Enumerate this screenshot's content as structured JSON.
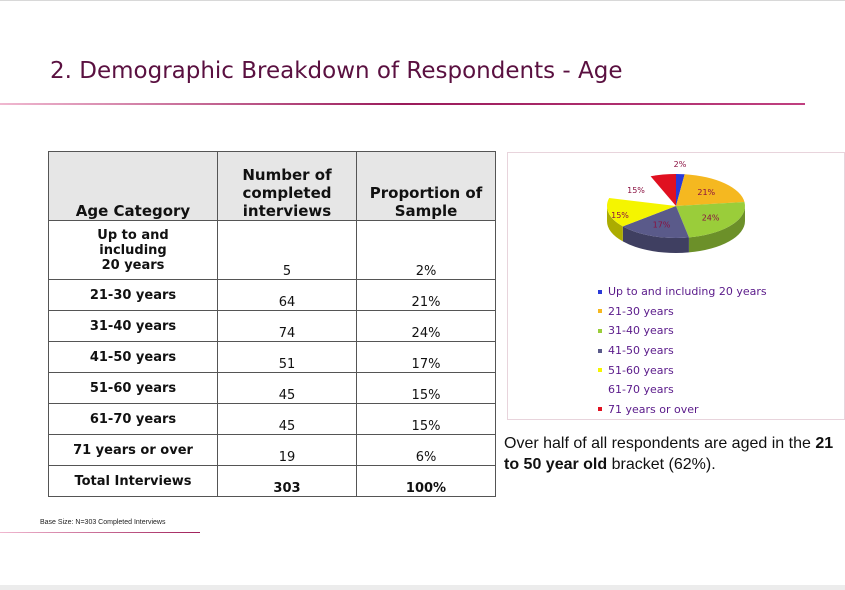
{
  "slide": {
    "title": "2. Demographic Breakdown of Respondents - Age",
    "footnote": "Base Size: N=303 Completed Interviews",
    "summary_pre": "Over half of all respondents are aged in the ",
    "summary_bold": "21 to 50 year old",
    "summary_post": " bracket (62%)."
  },
  "table": {
    "headers": [
      "Age Category",
      "Number of completed interviews",
      "Proportion of Sample"
    ],
    "rows": [
      {
        "category": "Up to and including 20 years",
        "count": "5",
        "proportion": "2%"
      },
      {
        "category": "21-30 years",
        "count": "64",
        "proportion": "21%"
      },
      {
        "category": "31-40 years",
        "count": "74",
        "proportion": "24%"
      },
      {
        "category": "41-50 years",
        "count": "51",
        "proportion": "17%"
      },
      {
        "category": "51-60 years",
        "count": "45",
        "proportion": "15%"
      },
      {
        "category": "61-70 years",
        "count": "45",
        "proportion": "15%"
      },
      {
        "category": "71 years or over",
        "count": "19",
        "proportion": "6%"
      }
    ],
    "total": {
      "category": "Total Interviews",
      "count": "303",
      "proportion": "100%"
    }
  },
  "chart_data": {
    "type": "pie",
    "categories": [
      "Up to and including 20 years",
      "21-30 years",
      "31-40 years",
      "41-50 years",
      "51-60 years",
      "61-70 years",
      "71 years or over"
    ],
    "values": [
      2,
      21,
      24,
      17,
      15,
      15,
      6
    ],
    "data_labels": [
      "2%",
      "21%",
      "24%",
      "17%",
      "15%",
      "15%",
      ""
    ],
    "colors": [
      "#2a3ad8",
      "#f5b820",
      "#9acd3a",
      "#5a5a8a",
      "#f5f500",
      "#ffffff",
      "#e01020"
    ],
    "legend_position": "bottom",
    "three_d": true
  }
}
